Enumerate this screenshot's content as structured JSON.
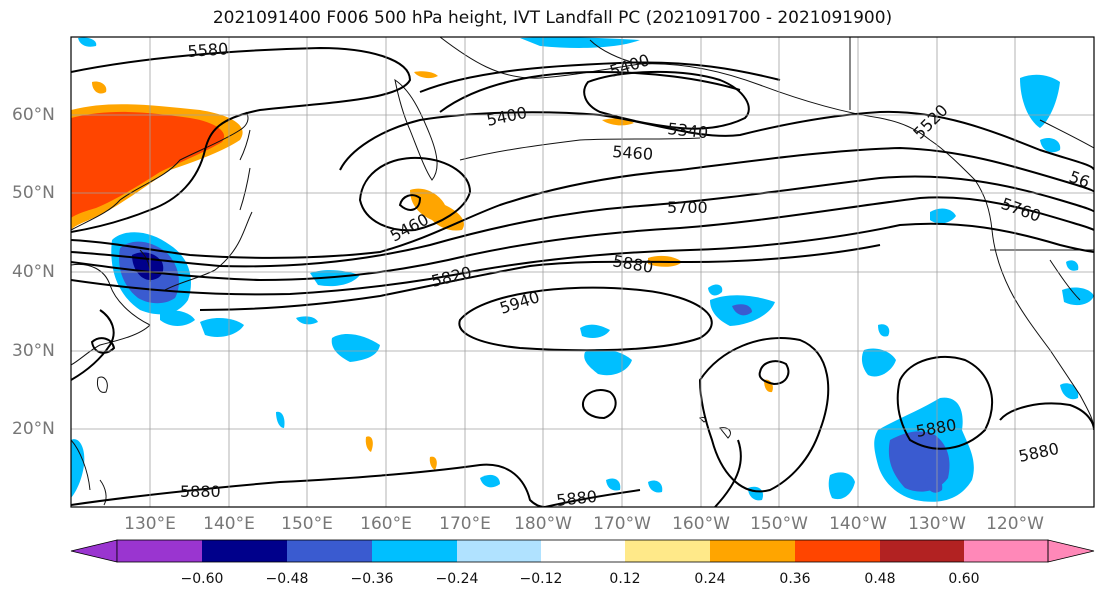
{
  "title": "2021091400 F006 500 hPa height, IVT Landfall PC (2021091700 - 2021091900)",
  "lat_labels": [
    "60°N",
    "50°N",
    "40°N",
    "30°N",
    "20°N"
  ],
  "lon_labels": [
    "130°E",
    "140°E",
    "150°E",
    "160°E",
    "170°E",
    "180°W",
    "170°W",
    "160°W",
    "150°W",
    "140°W",
    "130°W",
    "120°W"
  ],
  "contour_labels": [
    "5580",
    "5400",
    "5400",
    "5340",
    "5460",
    "5520",
    "5460",
    "5700",
    "5760",
    "56",
    "5820",
    "5880",
    "5940",
    "5880",
    "5880",
    "5880",
    "5880"
  ],
  "colorbar": {
    "ticks": [
      "−0.60",
      "−0.48",
      "−0.36",
      "−0.24",
      "−0.12",
      "0.12",
      "0.24",
      "0.36",
      "0.48",
      "0.60"
    ],
    "colors": [
      "#9a35d0",
      "#00008b",
      "#3a5bd0",
      "#00bfff",
      "#b0e2ff",
      "#ffffff",
      "#ffe989",
      "#ffa500",
      "#ff4500",
      "#b22222",
      "#ff88b8"
    ]
  },
  "colors": {
    "land": "#111111",
    "contour": "#000000",
    "grid": "#a0a0a0"
  }
}
